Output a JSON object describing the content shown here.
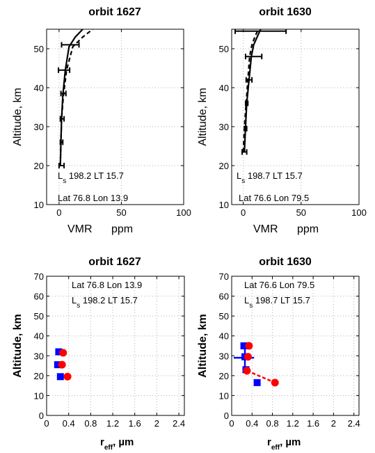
{
  "colors": {
    "ink": "#000000",
    "grid": "#b0b0b0",
    "blue": "#0000ff",
    "red": "#ff0000"
  },
  "chart_data": [
    {
      "type": "line",
      "title": "orbit 1627",
      "ylabel": "Altitude, km",
      "xlabel_main": "VMR",
      "xlabel_unit": "ppm",
      "xlim": [
        -10,
        100
      ],
      "ylim": [
        10,
        55
      ],
      "xticks": [
        "0",
        "50",
        "100"
      ],
      "yticks": [
        "10",
        "20",
        "30",
        "40",
        "50"
      ],
      "grid": true,
      "annotation": {
        "ls_sub": "s",
        "ls_rest": " 198.2 LT 15.7",
        "latlon": "Lat 76.8 Lon 13.9"
      },
      "series": [
        {
          "style": "solid",
          "x": [
            1,
            1.5,
            2,
            3,
            5,
            8,
            13,
            19
          ],
          "y": [
            20,
            26,
            32,
            38,
            44.5,
            50.5,
            53,
            55
          ]
        },
        {
          "style": "dashed",
          "x": [
            1,
            1.5,
            2,
            3.5,
            6,
            11,
            19,
            27
          ],
          "y": [
            20,
            26,
            32,
            38,
            44.5,
            50.5,
            53,
            55
          ]
        }
      ],
      "errorbars": [
        {
          "x": 2,
          "y": 20,
          "xerr": 2
        },
        {
          "x": 2,
          "y": 26,
          "xerr": 1
        },
        {
          "x": 2.5,
          "y": 32,
          "xerr": 1.5
        },
        {
          "x": 3.5,
          "y": 38.5,
          "xerr": 2
        },
        {
          "x": 4,
          "y": 44.5,
          "xerr": 4.5
        },
        {
          "x": 9,
          "y": 51,
          "xerr": 7
        }
      ]
    },
    {
      "type": "line",
      "title": "orbit 1630",
      "ylabel": "Altitude, km",
      "xlabel_main": "VMR",
      "xlabel_unit": "ppm",
      "xlim": [
        -10,
        100
      ],
      "ylim": [
        10,
        55
      ],
      "xticks": [
        "0",
        "50",
        "100"
      ],
      "yticks": [
        "10",
        "20",
        "30",
        "40",
        "50"
      ],
      "grid": true,
      "annotation": {
        "ls_sub": "s",
        "ls_rest": " 198.7 LT 15.7",
        "latlon": "Lat 76.6 Lon 79.5"
      },
      "series": [
        {
          "style": "solid",
          "x": [
            1,
            2,
            3,
            5,
            7,
            9,
            12,
            15
          ],
          "y": [
            23.5,
            30,
            36,
            42,
            48,
            51,
            53,
            55
          ]
        },
        {
          "style": "dashed",
          "x": [
            0,
            1,
            2.5,
            4,
            5.5,
            7.5,
            10,
            13
          ],
          "y": [
            23.5,
            30,
            36,
            42,
            48,
            51,
            53,
            55
          ]
        }
      ],
      "errorbars": [
        {
          "x": 1,
          "y": 23.5,
          "xerr": 2
        },
        {
          "x": 2,
          "y": 29.5,
          "xerr": 1
        },
        {
          "x": 3,
          "y": 36,
          "xerr": 1
        },
        {
          "x": 5,
          "y": 42,
          "xerr": 2.5
        },
        {
          "x": 9,
          "y": 48,
          "xerr": 7
        },
        {
          "x": 15,
          "y": 54.5,
          "xerr": 22
        }
      ]
    },
    {
      "type": "scatter",
      "title": "orbit 1627",
      "ylabel": "Altitude, km",
      "xlabel_main": "r",
      "xlabel_sub": "eff",
      "xlabel_unit": ", µm",
      "xlim": [
        0,
        2.5
      ],
      "ylim": [
        0,
        70
      ],
      "xticks": [
        "0",
        "0.4",
        "0.8",
        "1.2",
        "1.6",
        "2",
        "2.4"
      ],
      "yticks": [
        "0",
        "10",
        "20",
        "30",
        "40",
        "50",
        "60",
        "70"
      ],
      "grid": true,
      "annotation": {
        "latlon": "Lat 76.8 Lon 13.9",
        "ls_sub": "s",
        "ls_rest": " 198.2 LT 15.7"
      },
      "series": [
        {
          "marker": "square",
          "color": "blue",
          "x": [
            0.22,
            0.2,
            0.25
          ],
          "y": [
            32,
            25.5,
            19.5
          ]
        },
        {
          "marker": "circle",
          "color": "red",
          "x": [
            0.3,
            0.28,
            0.38
          ],
          "y": [
            31.5,
            25.5,
            19.5
          ]
        }
      ],
      "errorbars": [
        {
          "x": 0.22,
          "y": 32,
          "yerr": 1.5,
          "color": "blue"
        }
      ]
    },
    {
      "type": "scatter",
      "title": "orbit 1630",
      "ylabel": "Altitude, km",
      "xlabel_main": "r",
      "xlabel_sub": "eff",
      "xlabel_unit": ", µm",
      "xlim": [
        0,
        2.5
      ],
      "ylim": [
        0,
        70
      ],
      "xticks": [
        "0",
        "0.4",
        "0.8",
        "1.2",
        "1.6",
        "2",
        "2.4"
      ],
      "yticks": [
        "0",
        "10",
        "20",
        "30",
        "40",
        "50",
        "60",
        "70"
      ],
      "grid": true,
      "annotation": {
        "latlon": "Lat 76.6 Lon 79.5",
        "ls_sub": "s",
        "ls_rest": " 198.7 LT 15.7"
      },
      "series": [
        {
          "marker": "square",
          "color": "blue",
          "x": [
            0.24,
            0.26,
            0.28,
            0.5
          ],
          "y": [
            35,
            29.5,
            23,
            16.5
          ]
        },
        {
          "marker": "circle",
          "color": "red",
          "x": [
            0.34,
            0.32,
            0.3,
            0.85
          ],
          "y": [
            35,
            29.5,
            22.5,
            16.5
          ]
        }
      ],
      "dashed_fit": {
        "color": "red",
        "x": [
          0.3,
          0.85
        ],
        "y": [
          22.5,
          16.5
        ]
      },
      "errorbars": [
        {
          "x": 0.24,
          "y": 29,
          "xerr": 0.2,
          "color": "blue"
        },
        {
          "x": 0.26,
          "y": 29.5,
          "yerr": 6,
          "color": "blue"
        },
        {
          "x": 0.3,
          "y": 22.5,
          "yerr": 2,
          "color": "red"
        }
      ]
    }
  ]
}
